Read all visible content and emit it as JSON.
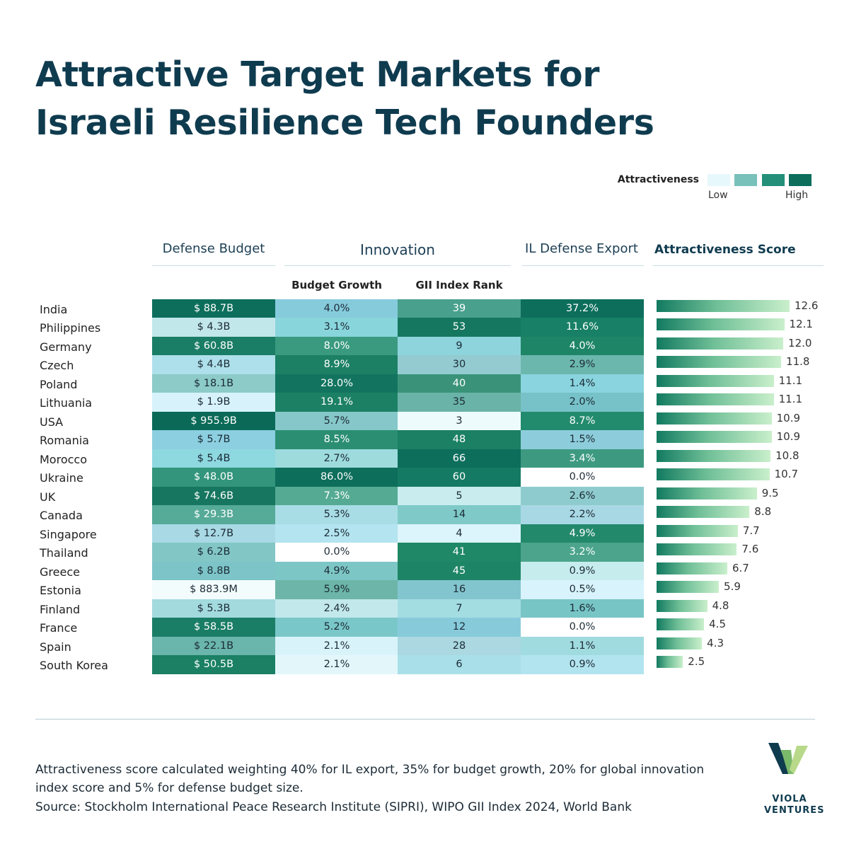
{
  "title_lines": [
    "Attractive Target Markets for",
    "Israeli Resilience Tech Founders"
  ],
  "legend": {
    "label": "Attractiveness",
    "low": "Low",
    "high": "High",
    "colors": [
      "#e6f8fb",
      "#78c0ba",
      "#24907a",
      "#0d6e5c"
    ]
  },
  "headers": {
    "defense_budget": "Defense Budget",
    "innovation": "Innovation",
    "il_defense_export": "IL Defense Export",
    "attractiveness_score": "Attractiveness Score",
    "budget_growth": "Budget Growth",
    "gii_rank": "GII Index Rank"
  },
  "chart_data": {
    "type": "table",
    "countries": [
      "India",
      "Philippines",
      "Germany",
      "Czech",
      "Poland",
      "Lithuania",
      "USA",
      "Romania",
      "Morocco",
      "Ukraine",
      "UK",
      "Canada",
      "Singapore",
      "Thailand",
      "Greece",
      "Estonia",
      "Finland",
      "France",
      "Spain",
      "South Korea"
    ],
    "defense_budget": [
      "$ 88.7B",
      "$ 4.3B",
      "$ 60.8B",
      "$ 4.4B",
      "$ 18.1B",
      "$ 1.9B",
      "$ 955.9B",
      "$ 5.7B",
      "$ 5.4B",
      "$ 48.0B",
      "$ 74.6B",
      "$ 29.3B",
      "$ 12.7B",
      "$ 6.2B",
      "$ 8.8B",
      "$ 883.9M",
      "$ 5.3B",
      "$ 58.5B",
      "$ 22.1B",
      "$ 50.5B"
    ],
    "budget_growth": [
      "4.0%",
      "3.1%",
      "8.0%",
      "8.9%",
      "28.0%",
      "19.1%",
      "5.7%",
      "8.5%",
      "2.7%",
      "86.0%",
      "7.3%",
      "5.3%",
      "2.5%",
      "0.0%",
      "4.9%",
      "5.9%",
      "2.4%",
      "5.2%",
      "2.1%",
      "2.1%"
    ],
    "gii_rank": [
      "39",
      "53",
      "9",
      "30",
      "40",
      "35",
      "3",
      "48",
      "66",
      "60",
      "5",
      "14",
      "4",
      "41",
      "45",
      "16",
      "7",
      "12",
      "28",
      "6"
    ],
    "il_defense_export": [
      "37.2%",
      "11.6%",
      "4.0%",
      "2.9%",
      "1.4%",
      "2.0%",
      "8.7%",
      "1.5%",
      "3.4%",
      "0.0%",
      "2.6%",
      "2.2%",
      "4.9%",
      "3.2%",
      "0.9%",
      "0.5%",
      "1.6%",
      "0.0%",
      "1.1%",
      "0.9%"
    ],
    "attractiveness_score": [
      12.6,
      12.1,
      12.0,
      11.8,
      11.1,
      11.1,
      10.9,
      10.9,
      10.8,
      10.7,
      9.5,
      8.8,
      7.7,
      7.6,
      6.7,
      5.9,
      4.8,
      4.5,
      4.3,
      2.5
    ],
    "score_labels": [
      "12.6",
      "12.1",
      "12.0",
      "11.8",
      "11.1",
      "11.1",
      "10.9",
      "10.9",
      "10.8",
      "10.7",
      "9.5",
      "8.8",
      "7.7",
      "7.6",
      "6.7",
      "5.9",
      "4.8",
      "4.5",
      "4.3",
      "2.5"
    ],
    "cell_colors": {
      "defense_budget": [
        "#0d6e5c",
        "#c2e7ea",
        "#1a7d66",
        "#ade0ea",
        "#8ccbc8",
        "#d7f2fb",
        "#0a6a57",
        "#8ccfe0",
        "#8ed8e0",
        "#32957c",
        "#17765f",
        "#56aa98",
        "#a8d9e5",
        "#82c7c6",
        "#7cc4c8",
        "#f3fcfd",
        "#a3dade",
        "#1a7d66",
        "#6ab5ac",
        "#1b8064"
      ],
      "budget_growth": [
        "#86cbdc",
        "#89d5dc",
        "#3a9a7f",
        "#1c8064",
        "#12745f",
        "#1c8064",
        "#86c7c9",
        "#2b8e72",
        "#9edbdd",
        "#0d6e5c",
        "#54aa92",
        "#a9dde6",
        "#b3e4ef",
        "#ffffff",
        "#7dc6c6",
        "#6cb5a8",
        "#c2e8eb",
        "#7ac7c9",
        "#d9f3fb",
        "#e3f7fb"
      ],
      "gii_rank": [
        "#48a08d",
        "#15775f",
        "#8ed4dd",
        "#93cbd1",
        "#3a9378",
        "#6ab3a8",
        "#eefbfc",
        "#1b8064",
        "#0d6e5c",
        "#157a63",
        "#c9edef",
        "#7fcac8",
        "#dcf4fb",
        "#1f8866",
        "#1d8565",
        "#83c5cf",
        "#a3dde2",
        "#87cbdb",
        "#abd8e1",
        "#a8dfe8"
      ],
      "il_defense_export": [
        "#0d6e5c",
        "#178066",
        "#1e8566",
        "#6bb7ad",
        "#89d4df",
        "#77c2c8",
        "#238b6d",
        "#8dcddb",
        "#3d9a80",
        "#ffffff",
        "#8ecbce",
        "#a9d8e5",
        "#23896b",
        "#4ba48b",
        "#c7ecee",
        "#d8f3fb",
        "#78c5c6",
        "#ffffff",
        "#a0dbdf",
        "#b2e4ef"
      ]
    }
  },
  "footer": {
    "note_line1": "Attractiveness score calculated weighting 40% for IL export, 35% for budget growth, 20% for global innovation",
    "note_line2": "index score and 5% for defense budget size.",
    "source": "Source: Stockholm International Peace Research Institute (SIPRI), WIPO GII Index 2024, World Bank"
  },
  "logo": {
    "line1": "VIOLA",
    "line2": "VENTURES",
    "colors": [
      "#0f3b4f",
      "#7ab86a",
      "#b9d98a"
    ]
  }
}
